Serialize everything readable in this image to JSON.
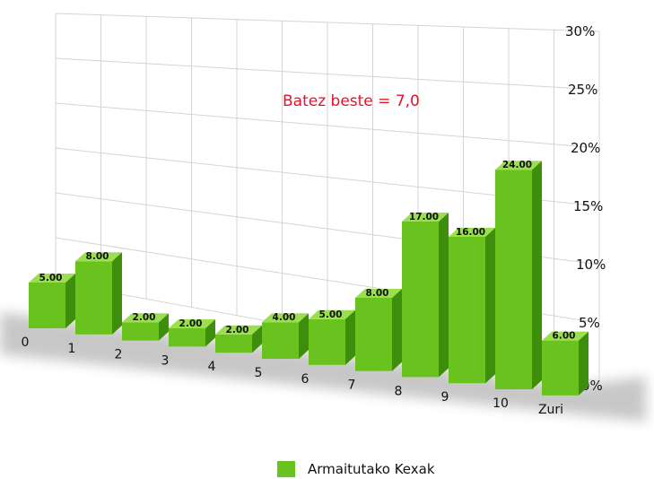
{
  "chart_data": {
    "type": "bar",
    "categories": [
      "0",
      "1",
      "2",
      "3",
      "4",
      "5",
      "6",
      "7",
      "8",
      "9",
      "10",
      "Zuri"
    ],
    "series": [
      {
        "name": "Armaitutako Kexak",
        "values": [
          5,
          8,
          2,
          2,
          2,
          4,
          5,
          8,
          17,
          16,
          24,
          6
        ],
        "labels": [
          "5.00",
          "8.00",
          "2.00",
          "2.00",
          "2.00",
          "4.00",
          "5.00",
          "8.00",
          "17.00",
          "16.00",
          "24.00",
          "6.00"
        ]
      }
    ],
    "title": "",
    "xlabel": "",
    "ylabel": "",
    "ylim": [
      0,
      30
    ],
    "yticks": [
      "0%",
      "5%",
      "10%",
      "15%",
      "20%",
      "25%",
      "30%"
    ],
    "grid": true,
    "legend": "bottom-center",
    "annotation": {
      "text": "Batez beste = 7,0",
      "color": "#e8102a"
    },
    "colors": {
      "bar_front": "#6ac21e",
      "bar_side": "#3f8d0c",
      "bar_top": "#9ae04e",
      "grid": "#d4d4d4"
    }
  }
}
